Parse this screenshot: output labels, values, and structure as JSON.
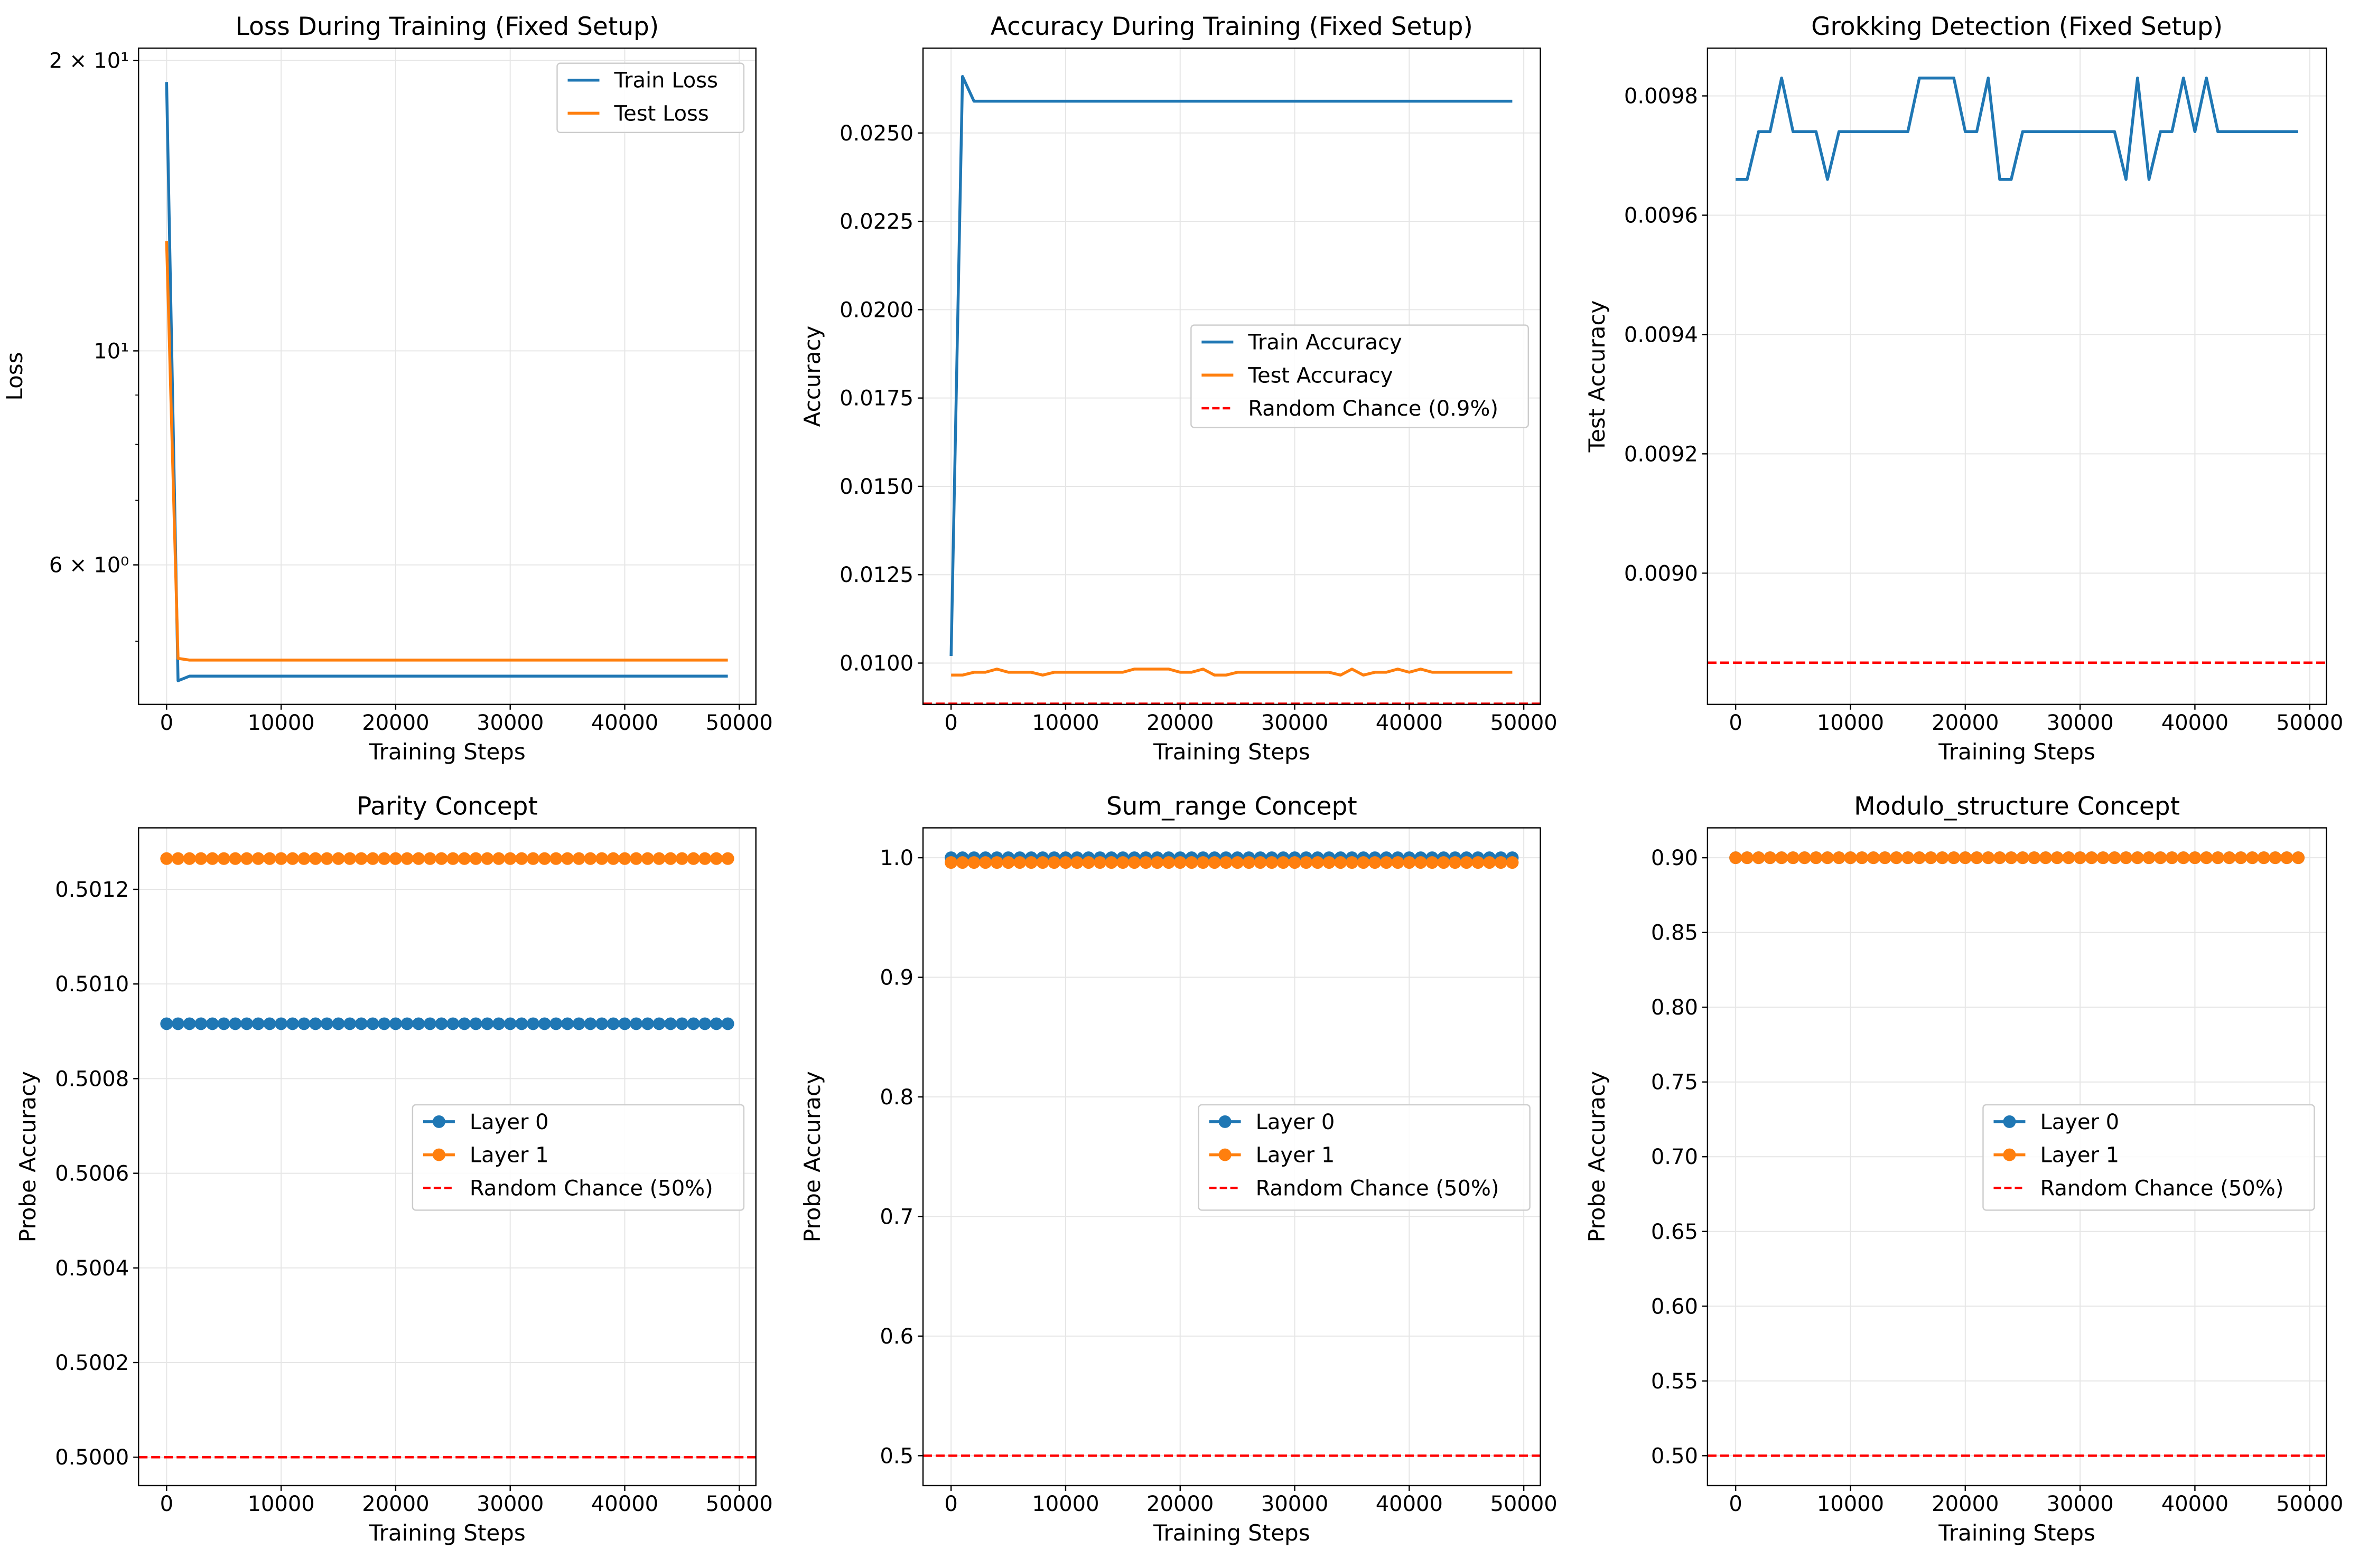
{
  "colors": {
    "blue": "#1f77b4",
    "orange": "#ff7f0e",
    "red": "#ff0000",
    "grid": "#e6e6e6"
  },
  "chart_data": [
    {
      "type": "line",
      "title": "Loss During Training (Fixed Setup)",
      "xlabel": "Training Steps",
      "ylabel": "Loss",
      "yscale": "log",
      "xlim": [
        -2450,
        51450
      ],
      "ylim": [
        4.3,
        20.6
      ],
      "xticks": [
        0,
        10000,
        20000,
        30000,
        40000,
        50000
      ],
      "xtick_labels": [
        "0",
        "10000",
        "20000",
        "30000",
        "40000",
        "50000"
      ],
      "yticks": [
        20,
        10,
        6
      ],
      "ytick_labels": [
        "2 × 10¹",
        "10¹",
        "6 × 10⁰"
      ],
      "grid": true,
      "legend_position": "top-right",
      "series": [
        {
          "name": "Train Loss",
          "color": "#1f77b4",
          "style": "solid",
          "marker": "none",
          "x": [
            0,
            1000,
            2000,
            3000,
            49000
          ],
          "y": [
            19.0,
            4.55,
            4.6,
            4.6,
            4.6
          ]
        },
        {
          "name": "Test Loss",
          "color": "#ff7f0e",
          "style": "solid",
          "marker": "none",
          "x": [
            0,
            1000,
            2000,
            3000,
            49000
          ],
          "y": [
            13.0,
            4.8,
            4.78,
            4.78,
            4.78
          ]
        }
      ]
    },
    {
      "type": "line",
      "title": "Accuracy During Training (Fixed Setup)",
      "xlabel": "Training Steps",
      "ylabel": "Accuracy",
      "xlim": [
        -2450,
        51450
      ],
      "ylim": [
        0.00883,
        0.0274
      ],
      "xticks": [
        0,
        10000,
        20000,
        30000,
        40000,
        50000
      ],
      "xtick_labels": [
        "0",
        "10000",
        "20000",
        "30000",
        "40000",
        "50000"
      ],
      "yticks": [
        0.01,
        0.0125,
        0.015,
        0.0175,
        0.02,
        0.0225,
        0.025
      ],
      "ytick_labels": [
        "0.0100",
        "0.0125",
        "0.0150",
        "0.0175",
        "0.0200",
        "0.0225",
        "0.0250"
      ],
      "grid": true,
      "legend_position": "center-right",
      "series": [
        {
          "name": "Train Accuracy",
          "color": "#1f77b4",
          "style": "solid",
          "marker": "none",
          "x": [
            0,
            1000,
            2000,
            3000,
            49000
          ],
          "y": [
            0.0102,
            0.0266,
            0.0259,
            0.0259,
            0.0259
          ]
        },
        {
          "name": "Test Accuracy",
          "color": "#ff7f0e",
          "style": "solid",
          "marker": "none",
          "x": [
            0,
            1000,
            2000,
            3000,
            4000,
            5000,
            6000,
            7000,
            8000,
            9000,
            10000,
            11000,
            12000,
            13000,
            14000,
            15000,
            16000,
            17000,
            18000,
            19000,
            20000,
            21000,
            22000,
            23000,
            24000,
            25000,
            26000,
            27000,
            28000,
            29000,
            30000,
            31000,
            32000,
            33000,
            34000,
            35000,
            36000,
            37000,
            38000,
            39000,
            40000,
            41000,
            42000,
            43000,
            44000,
            45000,
            46000,
            47000,
            48000,
            49000
          ],
          "y": [
            0.00966,
            0.00966,
            0.00974,
            0.00974,
            0.00983,
            0.00974,
            0.00974,
            0.00974,
            0.00966,
            0.00974,
            0.00974,
            0.00974,
            0.00974,
            0.00974,
            0.00974,
            0.00974,
            0.00983,
            0.00983,
            0.00983,
            0.00983,
            0.00974,
            0.00974,
            0.00983,
            0.00966,
            0.00966,
            0.00974,
            0.00974,
            0.00974,
            0.00974,
            0.00974,
            0.00974,
            0.00974,
            0.00974,
            0.00974,
            0.00966,
            0.00983,
            0.00966,
            0.00974,
            0.00974,
            0.00983,
            0.00974,
            0.00983,
            0.00974,
            0.00974,
            0.00974,
            0.00974,
            0.00974,
            0.00974,
            0.00974,
            0.00974
          ]
        },
        {
          "name": "Random Chance (0.9%)",
          "color": "#ff0000",
          "style": "dashed",
          "marker": "none",
          "hline": 0.00885
        }
      ]
    },
    {
      "type": "line",
      "title": "Grokking Detection (Fixed Setup)",
      "xlabel": "Training Steps",
      "ylabel": "Test Accuracy",
      "xlim": [
        -2450,
        51450
      ],
      "ylim": [
        0.00878,
        0.00988
      ],
      "xticks": [
        0,
        10000,
        20000,
        30000,
        40000,
        50000
      ],
      "xtick_labels": [
        "0",
        "10000",
        "20000",
        "30000",
        "40000",
        "50000"
      ],
      "yticks": [
        0.009,
        0.0092,
        0.0094,
        0.0096,
        0.0098
      ],
      "ytick_labels": [
        "0.0090",
        "0.0092",
        "0.0094",
        "0.0096",
        "0.0098"
      ],
      "grid": true,
      "series": [
        {
          "name": "",
          "color": "#1f77b4",
          "style": "solid",
          "marker": "none",
          "x": [
            0,
            1000,
            2000,
            3000,
            4000,
            5000,
            6000,
            7000,
            8000,
            9000,
            10000,
            11000,
            12000,
            13000,
            14000,
            15000,
            16000,
            17000,
            18000,
            19000,
            20000,
            21000,
            22000,
            23000,
            24000,
            25000,
            26000,
            27000,
            28000,
            29000,
            30000,
            31000,
            32000,
            33000,
            34000,
            35000,
            36000,
            37000,
            38000,
            39000,
            40000,
            41000,
            42000,
            43000,
            44000,
            45000,
            46000,
            47000,
            48000,
            49000
          ],
          "y": [
            0.00966,
            0.00966,
            0.00974,
            0.00974,
            0.00983,
            0.00974,
            0.00974,
            0.00974,
            0.00966,
            0.00974,
            0.00974,
            0.00974,
            0.00974,
            0.00974,
            0.00974,
            0.00974,
            0.00983,
            0.00983,
            0.00983,
            0.00983,
            0.00974,
            0.00974,
            0.00983,
            0.00966,
            0.00966,
            0.00974,
            0.00974,
            0.00974,
            0.00974,
            0.00974,
            0.00974,
            0.00974,
            0.00974,
            0.00974,
            0.00966,
            0.00983,
            0.00966,
            0.00974,
            0.00974,
            0.00983,
            0.00974,
            0.00983,
            0.00974,
            0.00974,
            0.00974,
            0.00974,
            0.00974,
            0.00974,
            0.00974,
            0.00974
          ]
        },
        {
          "name": "",
          "color": "#ff0000",
          "style": "dashed",
          "marker": "none",
          "hline": 0.00885
        }
      ]
    },
    {
      "type": "line",
      "title": "Parity Concept",
      "xlabel": "Training Steps",
      "ylabel": "Probe Accuracy",
      "xlim": [
        -2450,
        51450
      ],
      "ylim": [
        0.49994,
        0.50133
      ],
      "xticks": [
        0,
        10000,
        20000,
        30000,
        40000,
        50000
      ],
      "xtick_labels": [
        "0",
        "10000",
        "20000",
        "30000",
        "40000",
        "50000"
      ],
      "yticks": [
        0.5,
        0.5002,
        0.5004,
        0.5006,
        0.5008,
        0.501,
        0.5012
      ],
      "ytick_labels": [
        "0.5000",
        "0.5002",
        "0.5004",
        "0.5006",
        "0.5008",
        "0.5010",
        "0.5012"
      ],
      "grid": true,
      "legend_position": "center-right",
      "series": [
        {
          "name": "Layer 0",
          "color": "#1f77b4",
          "style": "solid",
          "marker": "o",
          "x_range": [
            0,
            49000,
            1000
          ],
          "constant": 0.500916
        },
        {
          "name": "Layer 1",
          "color": "#ff7f0e",
          "style": "solid",
          "marker": "o",
          "x_range": [
            0,
            49000,
            1000
          ],
          "constant": 0.501265
        },
        {
          "name": "Random Chance (50%)",
          "color": "#ff0000",
          "style": "dashed",
          "marker": "none",
          "hline": 0.5
        }
      ]
    },
    {
      "type": "line",
      "title": "Sum_range Concept",
      "xlabel": "Training Steps",
      "ylabel": "Probe Accuracy",
      "xlim": [
        -2450,
        51450
      ],
      "ylim": [
        0.475,
        1.025
      ],
      "xticks": [
        0,
        10000,
        20000,
        30000,
        40000,
        50000
      ],
      "xtick_labels": [
        "0",
        "10000",
        "20000",
        "30000",
        "40000",
        "50000"
      ],
      "yticks": [
        0.5,
        0.6,
        0.7,
        0.8,
        0.9,
        1.0
      ],
      "ytick_labels": [
        "0.5",
        "0.6",
        "0.7",
        "0.8",
        "0.9",
        "1.0"
      ],
      "grid": true,
      "legend_position": "center-right",
      "series": [
        {
          "name": "Layer 0",
          "color": "#1f77b4",
          "style": "solid",
          "marker": "o",
          "x_range": [
            0,
            49000,
            1000
          ],
          "constant": 1.0
        },
        {
          "name": "Layer 1",
          "color": "#ff7f0e",
          "style": "solid",
          "marker": "o",
          "x_range": [
            0,
            49000,
            1000
          ],
          "constant": 0.996
        },
        {
          "name": "Random Chance (50%)",
          "color": "#ff0000",
          "style": "dashed",
          "marker": "none",
          "hline": 0.5
        }
      ]
    },
    {
      "type": "line",
      "title": "Modulo_structure Concept",
      "xlabel": "Training Steps",
      "ylabel": "Probe Accuracy",
      "xlim": [
        -2450,
        51450
      ],
      "ylim": [
        0.48,
        0.92
      ],
      "xticks": [
        0,
        10000,
        20000,
        30000,
        40000,
        50000
      ],
      "xtick_labels": [
        "0",
        "10000",
        "20000",
        "30000",
        "40000",
        "50000"
      ],
      "yticks": [
        0.5,
        0.55,
        0.6,
        0.65,
        0.7,
        0.75,
        0.8,
        0.85,
        0.9
      ],
      "ytick_labels": [
        "0.50",
        "0.55",
        "0.60",
        "0.65",
        "0.70",
        "0.75",
        "0.80",
        "0.85",
        "0.90"
      ],
      "grid": true,
      "legend_position": "center-right",
      "series": [
        {
          "name": "Layer 0",
          "color": "#1f77b4",
          "style": "solid",
          "marker": "o",
          "x_range": [
            0,
            49000,
            1000
          ],
          "constant": 0.9
        },
        {
          "name": "Layer 1",
          "color": "#ff7f0e",
          "style": "solid",
          "marker": "o",
          "x_range": [
            0,
            49000,
            1000
          ],
          "constant": 0.9
        },
        {
          "name": "Random Chance (50%)",
          "color": "#ff0000",
          "style": "dashed",
          "marker": "none",
          "hline": 0.5
        }
      ]
    }
  ]
}
